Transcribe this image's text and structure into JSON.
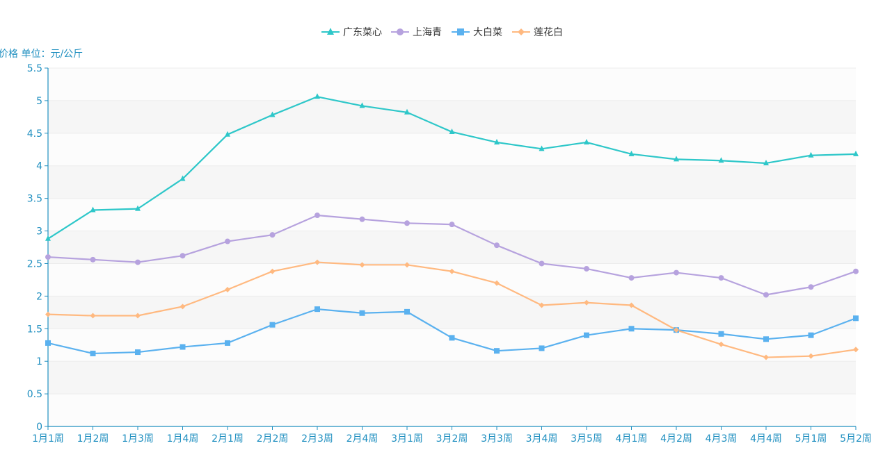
{
  "chart_data": {
    "type": "line",
    "ylabel": "价格 单位：元/公斤",
    "ylim": [
      0,
      5.5
    ],
    "y_ticks": [
      0,
      0.5,
      1,
      1.5,
      2,
      2.5,
      3,
      3.5,
      4,
      4.5,
      5,
      5.5
    ],
    "y_tick_labels": [
      "0",
      "0.5",
      "1",
      "1.5",
      "2",
      "2.5",
      "3",
      "3.5",
      "4",
      "4.5",
      "5",
      "5.5"
    ],
    "grid": "horizontal, alternating light-gray bands",
    "legend_position": "top-center",
    "categories": [
      "1月1周",
      "1月2周",
      "1月3周",
      "1月4周",
      "2月1周",
      "2月2周",
      "2月3周",
      "2月4周",
      "3月1周",
      "3月2周",
      "3月3周",
      "3月4周",
      "3月5周",
      "4月1周",
      "4月2周",
      "4月3周",
      "4月4周",
      "5月1周",
      "5月2周"
    ],
    "series": [
      {
        "name": "广东菜心",
        "color": "#2ec7c9",
        "marker": "triangle",
        "values": [
          2.88,
          3.32,
          3.34,
          3.8,
          4.48,
          4.78,
          5.06,
          4.92,
          4.82,
          4.52,
          4.36,
          4.26,
          4.36,
          4.18,
          4.1,
          4.08,
          4.04,
          4.16,
          4.18
        ]
      },
      {
        "name": "上海青",
        "color": "#b6a2de",
        "marker": "circle",
        "values": [
          2.6,
          2.56,
          2.52,
          2.62,
          2.84,
          2.94,
          3.24,
          3.18,
          3.12,
          3.1,
          2.78,
          2.5,
          2.42,
          2.28,
          2.36,
          2.28,
          2.02,
          2.14,
          2.38
        ]
      },
      {
        "name": "大白菜",
        "color": "#5ab1ef",
        "marker": "square",
        "values": [
          1.28,
          1.12,
          1.14,
          1.22,
          1.28,
          1.56,
          1.8,
          1.74,
          1.76,
          1.36,
          1.16,
          1.2,
          1.4,
          1.5,
          1.48,
          1.42,
          1.34,
          1.4,
          1.66
        ]
      },
      {
        "name": "莲花白",
        "color": "#ffb980",
        "marker": "diamond",
        "values": [
          1.72,
          1.7,
          1.7,
          1.84,
          2.1,
          2.38,
          2.52,
          2.48,
          2.48,
          2.38,
          2.2,
          1.86,
          1.9,
          1.86,
          1.48,
          1.26,
          1.06,
          1.08,
          1.18
        ]
      }
    ]
  }
}
